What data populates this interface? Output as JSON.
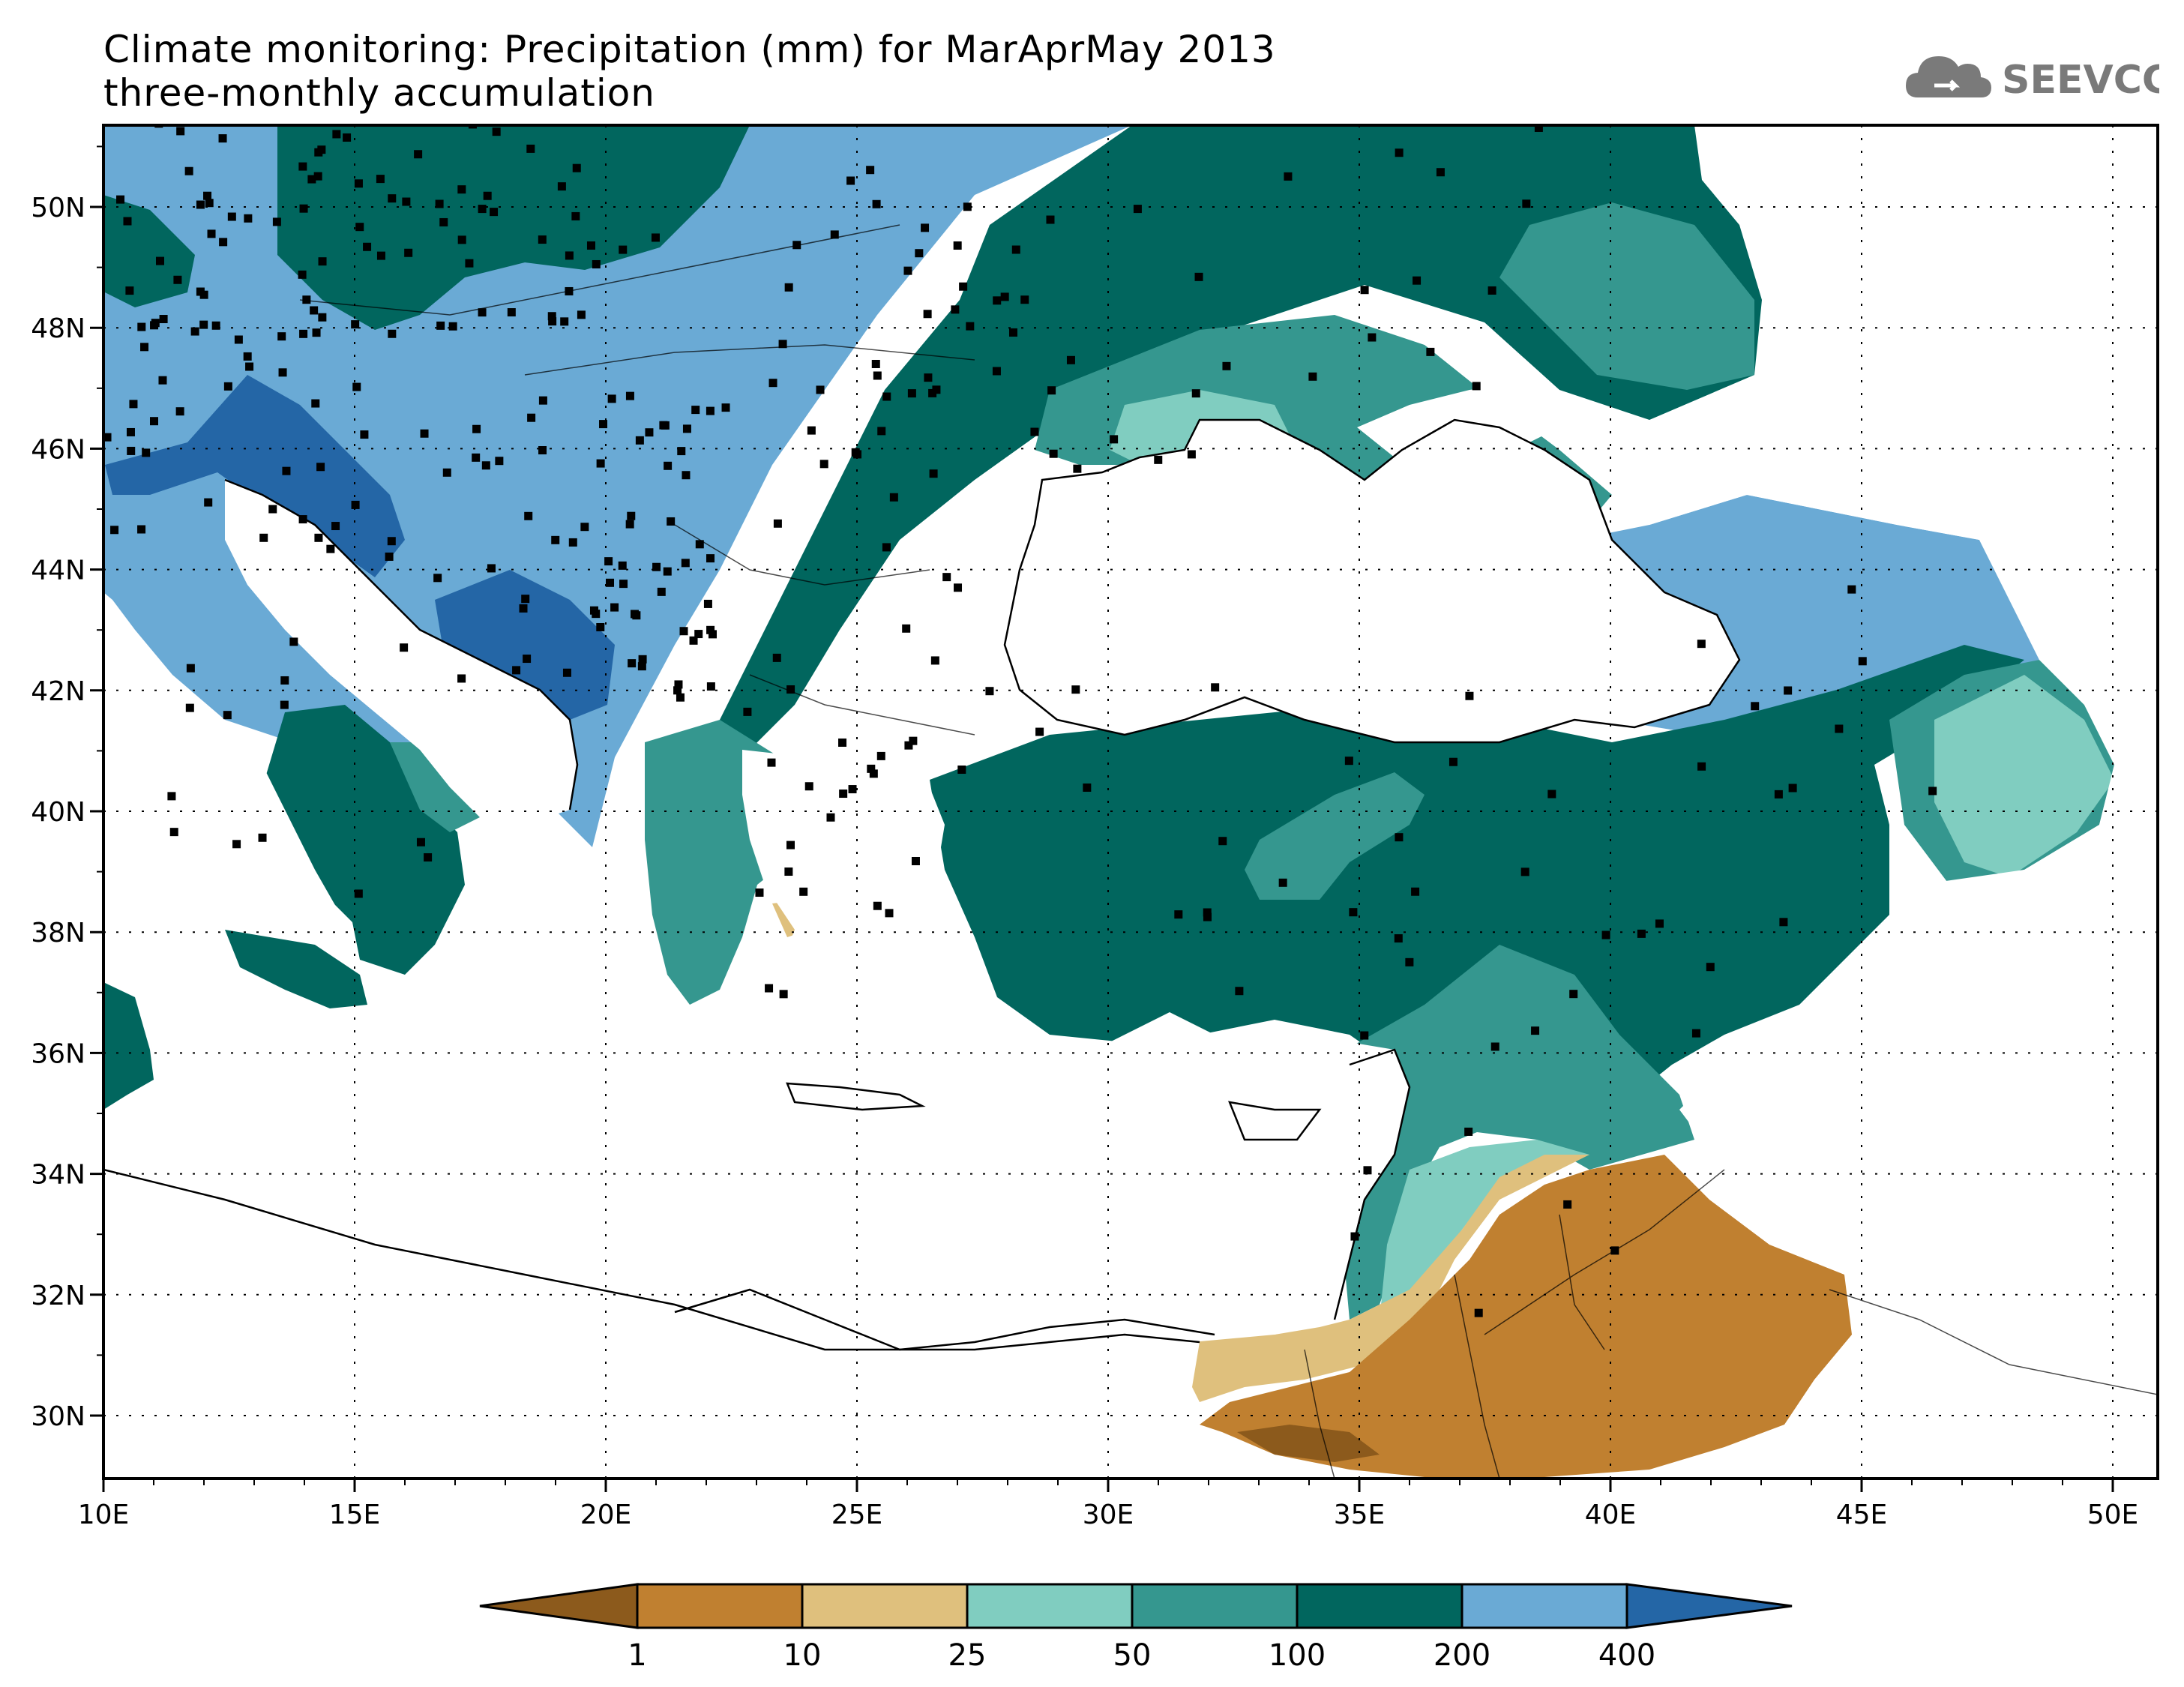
{
  "title_line1": "Climate monitoring: Precipitation (mm) for MarAprMay 2013",
  "title_line2": "three-monthly accumulation",
  "logo_text": "SEEVCCC",
  "lon_labels": [
    "10E",
    "15E",
    "20E",
    "25E",
    "30E",
    "35E",
    "40E",
    "45E",
    "50E"
  ],
  "lat_labels": [
    "30N",
    "32N",
    "34N",
    "36N",
    "38N",
    "40N",
    "42N",
    "44N",
    "46N",
    "48N",
    "50N"
  ],
  "colorbar": {
    "labels": [
      "1",
      "10",
      "25",
      "50",
      "100",
      "200",
      "400"
    ],
    "colors": [
      "#8c5a1c",
      "#c08030",
      "#dfc07d",
      "#80cdc0",
      "#35978f",
      "#01665e",
      "#6aaad5",
      "#2466a6"
    ]
  }
}
